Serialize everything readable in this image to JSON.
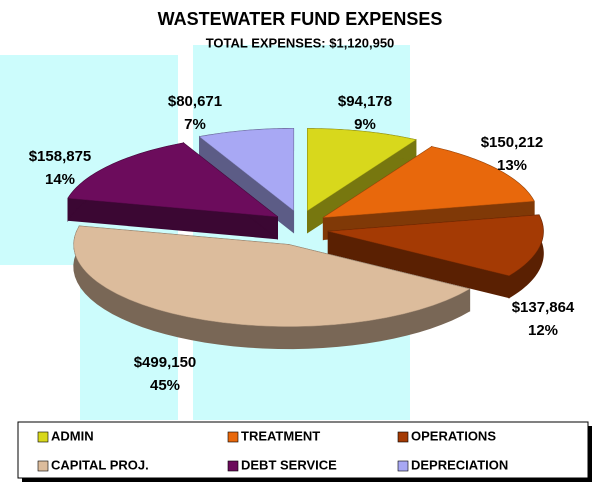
{
  "chart_data": {
    "type": "pie",
    "title": "WASTEWATER FUND EXPENSES",
    "subtitle": "TOTAL EXPENSES: $1,120,950",
    "categories": [
      "ADMIN",
      "TREATMENT",
      "OPERATIONS",
      "CAPITAL PROJ.",
      "DEBT SERVICE",
      "DEPRECIATION"
    ],
    "values": [
      94178,
      150212,
      137864,
      499150,
      158875,
      80671
    ],
    "value_labels": [
      "$94,178",
      "$150,212",
      "$137,864",
      "$499,150",
      "$158,875",
      "$80,671"
    ],
    "percent_labels": [
      "9%",
      "13%",
      "12%",
      "45%",
      "14%",
      "7%"
    ],
    "colors": [
      "#d8d81c",
      "#e8680c",
      "#a43a04",
      "#dcbc9c",
      "#6c0c5c",
      "#a8a8f4"
    ],
    "legend": "bottom"
  }
}
